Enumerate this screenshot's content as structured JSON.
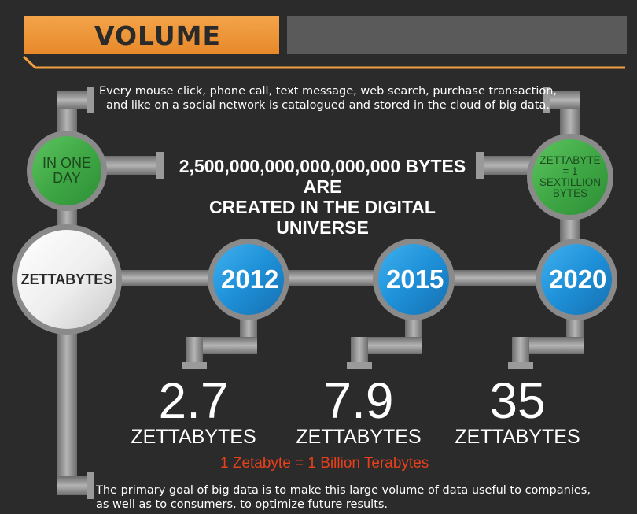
{
  "header": {
    "title": "VOLUME"
  },
  "intro_text": "Every mouse click, phone call, text message, web search, purchase transaction, and like on a social network is catalogued and stored in the cloud of big data.",
  "daily": {
    "circle_label": "IN ONE DAY",
    "statement_line1": "2,500,000,000,000,000,000 BYTES ARE",
    "statement_line2": "CREATED IN THE DIGITAL UNIVERSE",
    "definition": "ZETTABYTE = 1 SEXTILLION BYTES"
  },
  "hub_label": "ZETTABYTES",
  "unit_label": "ZETTABYTES",
  "milestones": [
    {
      "year": "2012",
      "value": "2.7"
    },
    {
      "year": "2015",
      "value": "7.9"
    },
    {
      "year": "2020",
      "value": "35"
    }
  ],
  "conversion_note": "1 Zetabyte = 1 Billion Terabytes",
  "footer_text": "The primary goal of big data is to make this large volume of data useful to companies, as well as to consumers, to optimize future results.",
  "colors": {
    "background": "#2b2b2b",
    "accent_orange": "#f0a040",
    "green_circle": "#4caf50",
    "blue_circle": "#1e90d8",
    "pipe_gray": "#8a8a8a",
    "red_note": "#e8401a"
  }
}
